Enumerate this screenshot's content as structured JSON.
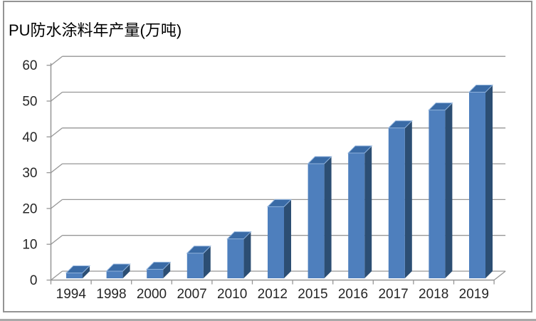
{
  "chart_data": {
    "type": "bar",
    "variant": "3d-column",
    "title": "PU防水涂料年产量(万吨)",
    "categories": [
      "1994",
      "1998",
      "2000",
      "2007",
      "2010",
      "2012",
      "2015",
      "2016",
      "2017",
      "2018",
      "2019"
    ],
    "values": [
      1.5,
      2,
      2.5,
      7,
      11,
      20,
      32,
      35,
      42,
      47,
      52
    ],
    "xlabel": "",
    "ylabel": "",
    "ylim": [
      0,
      60
    ],
    "yticks": [
      0,
      10,
      20,
      30,
      40,
      50,
      60
    ],
    "grid": true,
    "legend": false,
    "colors": {
      "bar_front": "#4E7FBD",
      "bar_side": "#2C4E73",
      "bar_top": "#3A6BA6",
      "bar_top_highlight": "#8FB2DC",
      "gridline": "#969696",
      "axis": "#969696",
      "tick_label": "#262626",
      "title": "#000000",
      "frame_border": "#949494",
      "page_edge": "#A9A9A9",
      "background": "#FFFFFF"
    }
  }
}
